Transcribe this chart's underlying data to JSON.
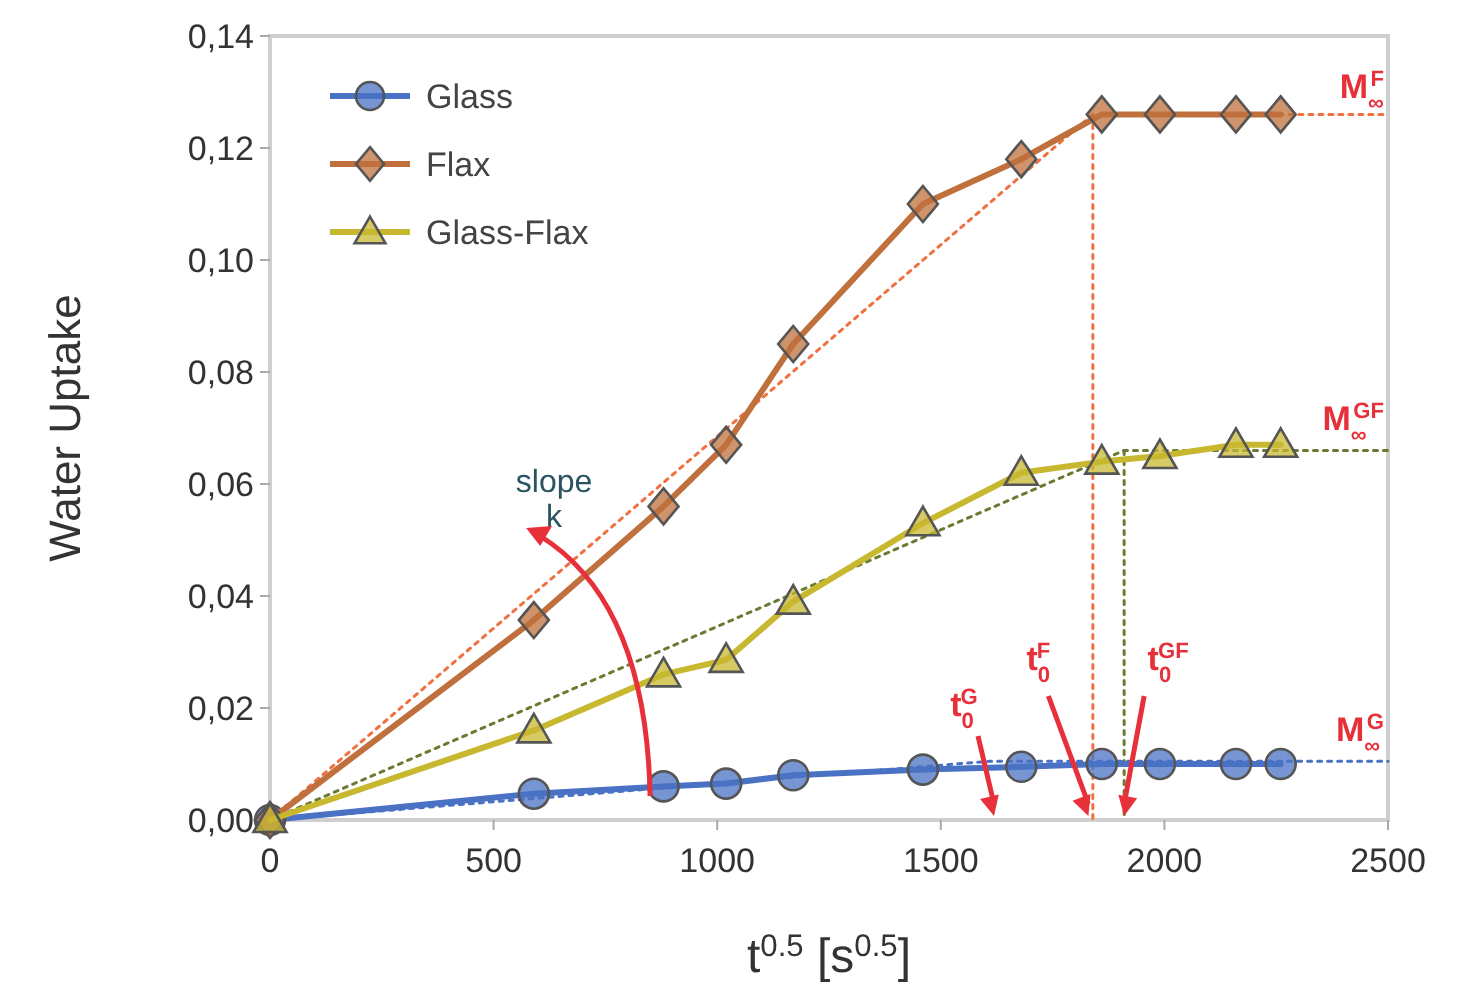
{
  "chart_data": {
    "type": "line",
    "xlabel": "t$^{0.5}$ [s$^{0.5}$]",
    "ylabel": "Water Uptake",
    "xlim": [
      0,
      2500
    ],
    "xticks": [
      0,
      500,
      1000,
      1500,
      2000,
      2500
    ],
    "ylim": [
      0,
      0.14
    ],
    "yticks": [
      {
        "value": 0,
        "label": "0,00"
      },
      {
        "value": 0.02,
        "label": "0,02"
      },
      {
        "value": 0.04,
        "label": "0,04"
      },
      {
        "value": 0.06,
        "label": "0,06"
      },
      {
        "value": 0.08,
        "label": "0,08"
      },
      {
        "value": 0.1,
        "label": "0,10"
      },
      {
        "value": 0.12,
        "label": "0,12"
      },
      {
        "value": 0.14,
        "label": "0,14"
      }
    ],
    "grid": false,
    "legend": "top left",
    "x": [
      0,
      590,
      880,
      1020,
      1170,
      1460,
      1680,
      1860,
      1990,
      2160,
      2260
    ],
    "series": [
      {
        "name": "Glass",
        "color": "#4a72c4",
        "marker": "circle",
        "values": [
          0,
          0.0047,
          0.006,
          0.0065,
          0.008,
          0.009,
          0.0095,
          0.01,
          0.01,
          0.01,
          0.01
        ]
      },
      {
        "name": "Flax",
        "color": "#c0703c",
        "marker": "diamond",
        "values": [
          0,
          0.0357,
          0.056,
          0.067,
          0.085,
          0.11,
          0.118,
          0.126,
          0.126,
          0.126,
          0.126
        ]
      },
      {
        "name": "Glass-Flax",
        "color": "#c8b830",
        "marker": "triangle",
        "values": [
          0,
          0.016,
          0.026,
          0.0286,
          0.039,
          0.053,
          0.062,
          0.064,
          0.065,
          0.067,
          0.067
        ]
      },
      {
        "type": "line",
        "color": "#4a72c4",
        "marker": "none",
        "line_style": "dotted",
        "x": [
          0,
          1610,
          2500
        ],
        "values": [
          0,
          0.0105,
          0.0105
        ]
      },
      {
        "type": "line",
        "color": "#f07040",
        "marker": "none",
        "line_style": "dotted",
        "x": [
          0,
          1840,
          2500
        ],
        "values": [
          0,
          0.126,
          0.126
        ]
      },
      {
        "type": "line",
        "color": "#f07040",
        "marker": "none",
        "line_style": "dotted",
        "x": [
          1840,
          1840
        ],
        "values": [
          0.126,
          0
        ]
      },
      {
        "type": "line",
        "color": "#6a7a30",
        "marker": "none",
        "line_style": "dotted",
        "x": [
          0,
          1910,
          2500
        ],
        "values": [
          0,
          0.066,
          0.066
        ]
      },
      {
        "type": "line",
        "color": "#6a7a30",
        "marker": "none",
        "line_style": "dotted",
        "x": [
          1910,
          1910
        ],
        "values": [
          0.066,
          0
        ]
      }
    ],
    "annotations": [
      {
        "text": "slope k",
        "x": 850,
        "y": 0.005
      },
      "t$_{0}$$^{G}$",
      {
        "text": "t$_{0}$$^{F}$",
        "x": 1830,
        "y": 0
      },
      {
        "text": "t$_{0}$$^{GF}$",
        "x": 1910,
        "y": 0
      },
      {
        "text": "M$_{∞}$$^{F}$",
        "x": 2500,
        "y": 0.126
      },
      {
        "text": "M$_{∞}$$^{GF}$",
        "x": 2500,
        "y": 0.066
      },
      {
        "text": "M$_{∞}$$^{G}$",
        "x": 2500,
        "y": 0.0105
      }
    ]
  }
}
